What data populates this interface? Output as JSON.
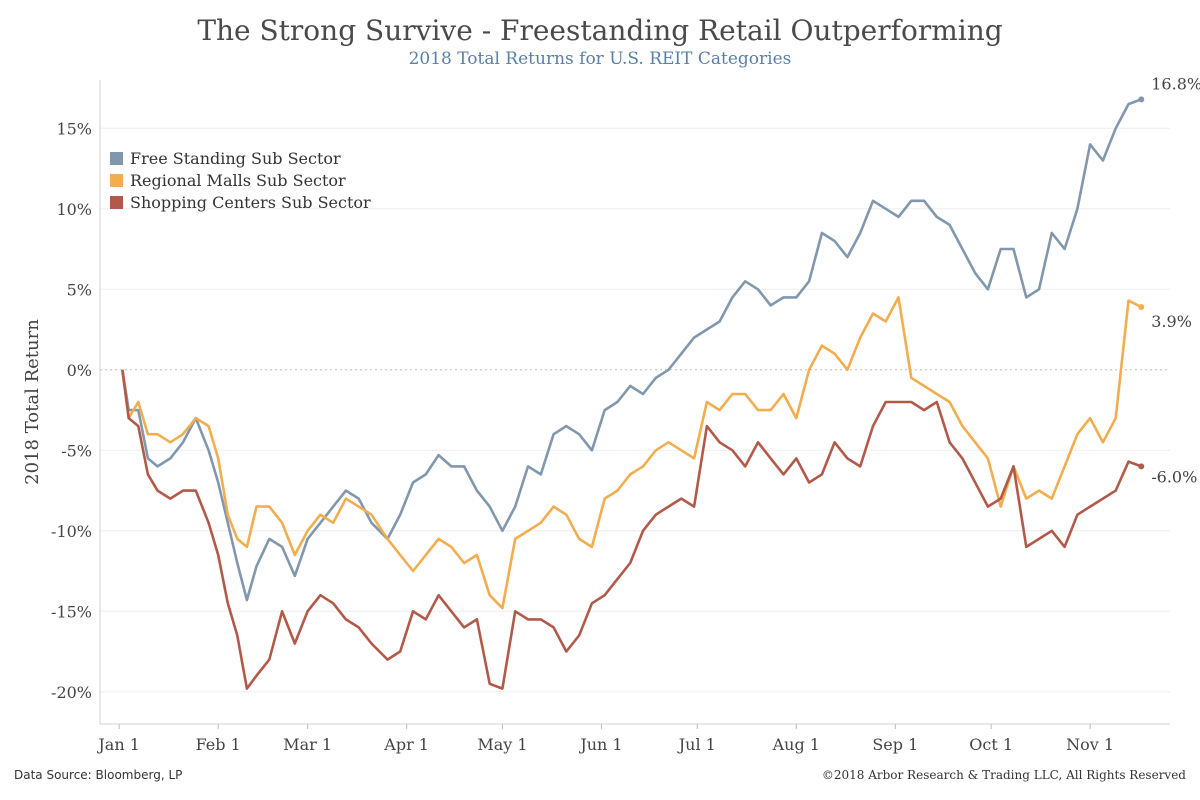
{
  "title": "The Strong Survive - Freestanding Retail Outperforming",
  "subtitle": "2018 Total Returns for U.S. REIT Categories",
  "footer": {
    "source": "Data Source: Bloomberg, LP",
    "copyright": "©2018 Arbor Research & Trading LLC, All Rights Reserved"
  },
  "chart_data": {
    "type": "line",
    "ylabel": "2018 Total Return",
    "ylim": [
      -22,
      18
    ],
    "yticks": [
      -20,
      -15,
      -10,
      -5,
      0,
      5,
      10,
      15
    ],
    "ytick_labels": [
      "-20%",
      "-15%",
      "-10%",
      "-5%",
      "0%",
      "5%",
      "10%",
      "15%"
    ],
    "x_range": [
      "2017-12-26",
      "2018-11-26"
    ],
    "x_ticks": [
      {
        "date": "2018-01-01",
        "label": "Jan 1"
      },
      {
        "date": "2018-02-01",
        "label": "Feb 1"
      },
      {
        "date": "2018-03-01",
        "label": "Mar 1"
      },
      {
        "date": "2018-04-01",
        "label": "Apr 1"
      },
      {
        "date": "2018-05-01",
        "label": "May 1"
      },
      {
        "date": "2018-06-01",
        "label": "Jun 1"
      },
      {
        "date": "2018-07-01",
        "label": "Jul 1"
      },
      {
        "date": "2018-08-01",
        "label": "Aug 1"
      },
      {
        "date": "2018-09-01",
        "label": "Sep 1"
      },
      {
        "date": "2018-10-01",
        "label": "Oct 1"
      },
      {
        "date": "2018-11-01",
        "label": "Nov 1"
      }
    ],
    "legend_position": "top-left",
    "zero_line": true,
    "series": [
      {
        "name": "Free Standing Sub Sector",
        "color": "#8197ae",
        "end_label": "16.8%",
        "points": [
          [
            "2018-01-02",
            0
          ],
          [
            "2018-01-04",
            -2.5
          ],
          [
            "2018-01-07",
            -2.5
          ],
          [
            "2018-01-10",
            -5.5
          ],
          [
            "2018-01-13",
            -6.0
          ],
          [
            "2018-01-17",
            -5.5
          ],
          [
            "2018-01-21",
            -4.5
          ],
          [
            "2018-01-25",
            -3.0
          ],
          [
            "2018-01-29",
            -5.0
          ],
          [
            "2018-02-01",
            -7.0
          ],
          [
            "2018-02-04",
            -9.5
          ],
          [
            "2018-02-07",
            -12.0
          ],
          [
            "2018-02-10",
            -14.3
          ],
          [
            "2018-02-13",
            -12.2
          ],
          [
            "2018-02-17",
            -10.5
          ],
          [
            "2018-02-21",
            -11.0
          ],
          [
            "2018-02-25",
            -12.8
          ],
          [
            "2018-03-01",
            -10.5
          ],
          [
            "2018-03-05",
            -9.5
          ],
          [
            "2018-03-09",
            -8.5
          ],
          [
            "2018-03-13",
            -7.5
          ],
          [
            "2018-03-17",
            -8.0
          ],
          [
            "2018-03-21",
            -9.5
          ],
          [
            "2018-03-26",
            -10.5
          ],
          [
            "2018-03-30",
            -9.0
          ],
          [
            "2018-04-03",
            -7.0
          ],
          [
            "2018-04-07",
            -6.5
          ],
          [
            "2018-04-11",
            -5.3
          ],
          [
            "2018-04-15",
            -6.0
          ],
          [
            "2018-04-19",
            -6.0
          ],
          [
            "2018-04-23",
            -7.5
          ],
          [
            "2018-04-27",
            -8.5
          ],
          [
            "2018-05-01",
            -10.0
          ],
          [
            "2018-05-05",
            -8.5
          ],
          [
            "2018-05-09",
            -6.0
          ],
          [
            "2018-05-13",
            -6.5
          ],
          [
            "2018-05-17",
            -4.0
          ],
          [
            "2018-05-21",
            -3.5
          ],
          [
            "2018-05-25",
            -4.0
          ],
          [
            "2018-05-29",
            -5.0
          ],
          [
            "2018-06-02",
            -2.5
          ],
          [
            "2018-06-06",
            -2.0
          ],
          [
            "2018-06-10",
            -1.0
          ],
          [
            "2018-06-14",
            -1.5
          ],
          [
            "2018-06-18",
            -0.5
          ],
          [
            "2018-06-22",
            0.0
          ],
          [
            "2018-06-26",
            1.0
          ],
          [
            "2018-06-30",
            2.0
          ],
          [
            "2018-07-04",
            2.5
          ],
          [
            "2018-07-08",
            3.0
          ],
          [
            "2018-07-12",
            4.5
          ],
          [
            "2018-07-16",
            5.5
          ],
          [
            "2018-07-20",
            5.0
          ],
          [
            "2018-07-24",
            4.0
          ],
          [
            "2018-07-28",
            4.5
          ],
          [
            "2018-08-01",
            4.5
          ],
          [
            "2018-08-05",
            5.5
          ],
          [
            "2018-08-09",
            8.5
          ],
          [
            "2018-08-13",
            8.0
          ],
          [
            "2018-08-17",
            7.0
          ],
          [
            "2018-08-21",
            8.5
          ],
          [
            "2018-08-25",
            10.5
          ],
          [
            "2018-08-29",
            10.0
          ],
          [
            "2018-09-02",
            9.5
          ],
          [
            "2018-09-06",
            10.5
          ],
          [
            "2018-09-10",
            10.5
          ],
          [
            "2018-09-14",
            9.5
          ],
          [
            "2018-09-18",
            9.0
          ],
          [
            "2018-09-22",
            7.5
          ],
          [
            "2018-09-26",
            6.0
          ],
          [
            "2018-09-30",
            5.0
          ],
          [
            "2018-10-04",
            7.5
          ],
          [
            "2018-10-08",
            7.5
          ],
          [
            "2018-10-12",
            4.5
          ],
          [
            "2018-10-16",
            5.0
          ],
          [
            "2018-10-20",
            8.5
          ],
          [
            "2018-10-24",
            7.5
          ],
          [
            "2018-10-28",
            10.0
          ],
          [
            "2018-11-01",
            14.0
          ],
          [
            "2018-11-05",
            13.0
          ],
          [
            "2018-11-09",
            15.0
          ],
          [
            "2018-11-13",
            16.5
          ],
          [
            "2018-11-17",
            16.8
          ]
        ]
      },
      {
        "name": "Regional Malls Sub Sector",
        "color": "#f2ad4e",
        "end_label": "3.9%",
        "points": [
          [
            "2018-01-02",
            0
          ],
          [
            "2018-01-04",
            -3.0
          ],
          [
            "2018-01-07",
            -2.0
          ],
          [
            "2018-01-10",
            -4.0
          ],
          [
            "2018-01-13",
            -4.0
          ],
          [
            "2018-01-17",
            -4.5
          ],
          [
            "2018-01-21",
            -4.0
          ],
          [
            "2018-01-25",
            -3.0
          ],
          [
            "2018-01-29",
            -3.5
          ],
          [
            "2018-02-01",
            -5.5
          ],
          [
            "2018-02-04",
            -9.0
          ],
          [
            "2018-02-07",
            -10.5
          ],
          [
            "2018-02-10",
            -11.0
          ],
          [
            "2018-02-13",
            -8.5
          ],
          [
            "2018-02-17",
            -8.5
          ],
          [
            "2018-02-21",
            -9.5
          ],
          [
            "2018-02-25",
            -11.5
          ],
          [
            "2018-03-01",
            -10.0
          ],
          [
            "2018-03-05",
            -9.0
          ],
          [
            "2018-03-09",
            -9.5
          ],
          [
            "2018-03-13",
            -8.0
          ],
          [
            "2018-03-17",
            -8.5
          ],
          [
            "2018-03-21",
            -9.0
          ],
          [
            "2018-03-26",
            -10.5
          ],
          [
            "2018-03-30",
            -11.5
          ],
          [
            "2018-04-03",
            -12.5
          ],
          [
            "2018-04-07",
            -11.5
          ],
          [
            "2018-04-11",
            -10.5
          ],
          [
            "2018-04-15",
            -11.0
          ],
          [
            "2018-04-19",
            -12.0
          ],
          [
            "2018-04-23",
            -11.5
          ],
          [
            "2018-04-27",
            -14.0
          ],
          [
            "2018-05-01",
            -14.8
          ],
          [
            "2018-05-05",
            -10.5
          ],
          [
            "2018-05-09",
            -10.0
          ],
          [
            "2018-05-13",
            -9.5
          ],
          [
            "2018-05-17",
            -8.5
          ],
          [
            "2018-05-21",
            -9.0
          ],
          [
            "2018-05-25",
            -10.5
          ],
          [
            "2018-05-29",
            -11.0
          ],
          [
            "2018-06-02",
            -8.0
          ],
          [
            "2018-06-06",
            -7.5
          ],
          [
            "2018-06-10",
            -6.5
          ],
          [
            "2018-06-14",
            -6.0
          ],
          [
            "2018-06-18",
            -5.0
          ],
          [
            "2018-06-22",
            -4.5
          ],
          [
            "2018-06-26",
            -5.0
          ],
          [
            "2018-06-30",
            -5.5
          ],
          [
            "2018-07-04",
            -2.0
          ],
          [
            "2018-07-08",
            -2.5
          ],
          [
            "2018-07-12",
            -1.5
          ],
          [
            "2018-07-16",
            -1.5
          ],
          [
            "2018-07-20",
            -2.5
          ],
          [
            "2018-07-24",
            -2.5
          ],
          [
            "2018-07-28",
            -1.5
          ],
          [
            "2018-08-01",
            -3.0
          ],
          [
            "2018-08-05",
            0.0
          ],
          [
            "2018-08-09",
            1.5
          ],
          [
            "2018-08-13",
            1.0
          ],
          [
            "2018-08-17",
            0.0
          ],
          [
            "2018-08-21",
            2.0
          ],
          [
            "2018-08-25",
            3.5
          ],
          [
            "2018-08-29",
            3.0
          ],
          [
            "2018-09-02",
            4.5
          ],
          [
            "2018-09-06",
            -0.5
          ],
          [
            "2018-09-10",
            -1.0
          ],
          [
            "2018-09-14",
            -1.5
          ],
          [
            "2018-09-18",
            -2.0
          ],
          [
            "2018-09-22",
            -3.5
          ],
          [
            "2018-09-26",
            -4.5
          ],
          [
            "2018-09-30",
            -5.5
          ],
          [
            "2018-10-04",
            -8.5
          ],
          [
            "2018-10-08",
            -6.0
          ],
          [
            "2018-10-12",
            -8.0
          ],
          [
            "2018-10-16",
            -7.5
          ],
          [
            "2018-10-20",
            -8.0
          ],
          [
            "2018-10-24",
            -6.0
          ],
          [
            "2018-10-28",
            -4.0
          ],
          [
            "2018-11-01",
            -3.0
          ],
          [
            "2018-11-05",
            -4.5
          ],
          [
            "2018-11-09",
            -3.0
          ],
          [
            "2018-11-13",
            4.3
          ],
          [
            "2018-11-17",
            3.9
          ]
        ]
      },
      {
        "name": "Shopping Centers Sub Sector",
        "color": "#b25a4a",
        "end_label": "-6.0%",
        "points": [
          [
            "2018-01-02",
            0
          ],
          [
            "2018-01-04",
            -3.0
          ],
          [
            "2018-01-07",
            -3.5
          ],
          [
            "2018-01-10",
            -6.5
          ],
          [
            "2018-01-13",
            -7.5
          ],
          [
            "2018-01-17",
            -8.0
          ],
          [
            "2018-01-21",
            -7.5
          ],
          [
            "2018-01-25",
            -7.5
          ],
          [
            "2018-01-29",
            -9.5
          ],
          [
            "2018-02-01",
            -11.5
          ],
          [
            "2018-02-04",
            -14.5
          ],
          [
            "2018-02-07",
            -16.5
          ],
          [
            "2018-02-10",
            -19.8
          ],
          [
            "2018-02-13",
            -19.0
          ],
          [
            "2018-02-17",
            -18.0
          ],
          [
            "2018-02-21",
            -15.0
          ],
          [
            "2018-02-25",
            -17.0
          ],
          [
            "2018-03-01",
            -15.0
          ],
          [
            "2018-03-05",
            -14.0
          ],
          [
            "2018-03-09",
            -14.5
          ],
          [
            "2018-03-13",
            -15.5
          ],
          [
            "2018-03-17",
            -16.0
          ],
          [
            "2018-03-21",
            -17.0
          ],
          [
            "2018-03-26",
            -18.0
          ],
          [
            "2018-03-30",
            -17.5
          ],
          [
            "2018-04-03",
            -15.0
          ],
          [
            "2018-04-07",
            -15.5
          ],
          [
            "2018-04-11",
            -14.0
          ],
          [
            "2018-04-15",
            -15.0
          ],
          [
            "2018-04-19",
            -16.0
          ],
          [
            "2018-04-23",
            -15.5
          ],
          [
            "2018-04-27",
            -19.5
          ],
          [
            "2018-05-01",
            -19.8
          ],
          [
            "2018-05-05",
            -15.0
          ],
          [
            "2018-05-09",
            -15.5
          ],
          [
            "2018-05-13",
            -15.5
          ],
          [
            "2018-05-17",
            -16.0
          ],
          [
            "2018-05-21",
            -17.5
          ],
          [
            "2018-05-25",
            -16.5
          ],
          [
            "2018-05-29",
            -14.5
          ],
          [
            "2018-06-02",
            -14.0
          ],
          [
            "2018-06-06",
            -13.0
          ],
          [
            "2018-06-10",
            -12.0
          ],
          [
            "2018-06-14",
            -10.0
          ],
          [
            "2018-06-18",
            -9.0
          ],
          [
            "2018-06-22",
            -8.5
          ],
          [
            "2018-06-26",
            -8.0
          ],
          [
            "2018-06-30",
            -8.5
          ],
          [
            "2018-07-04",
            -3.5
          ],
          [
            "2018-07-08",
            -4.5
          ],
          [
            "2018-07-12",
            -5.0
          ],
          [
            "2018-07-16",
            -6.0
          ],
          [
            "2018-07-20",
            -4.5
          ],
          [
            "2018-07-24",
            -5.5
          ],
          [
            "2018-07-28",
            -6.5
          ],
          [
            "2018-08-01",
            -5.5
          ],
          [
            "2018-08-05",
            -7.0
          ],
          [
            "2018-08-09",
            -6.5
          ],
          [
            "2018-08-13",
            -4.5
          ],
          [
            "2018-08-17",
            -5.5
          ],
          [
            "2018-08-21",
            -6.0
          ],
          [
            "2018-08-25",
            -3.5
          ],
          [
            "2018-08-29",
            -2.0
          ],
          [
            "2018-09-02",
            -2.0
          ],
          [
            "2018-09-06",
            -2.0
          ],
          [
            "2018-09-10",
            -2.5
          ],
          [
            "2018-09-14",
            -2.0
          ],
          [
            "2018-09-18",
            -4.5
          ],
          [
            "2018-09-22",
            -5.5
          ],
          [
            "2018-09-26",
            -7.0
          ],
          [
            "2018-09-30",
            -8.5
          ],
          [
            "2018-10-04",
            -8.0
          ],
          [
            "2018-10-08",
            -6.0
          ],
          [
            "2018-10-12",
            -11.0
          ],
          [
            "2018-10-16",
            -10.5
          ],
          [
            "2018-10-20",
            -10.0
          ],
          [
            "2018-10-24",
            -11.0
          ],
          [
            "2018-10-28",
            -9.0
          ],
          [
            "2018-11-01",
            -8.5
          ],
          [
            "2018-11-05",
            -8.0
          ],
          [
            "2018-11-09",
            -7.5
          ],
          [
            "2018-11-13",
            -5.7
          ],
          [
            "2018-11-17",
            -6.0
          ]
        ]
      }
    ]
  }
}
